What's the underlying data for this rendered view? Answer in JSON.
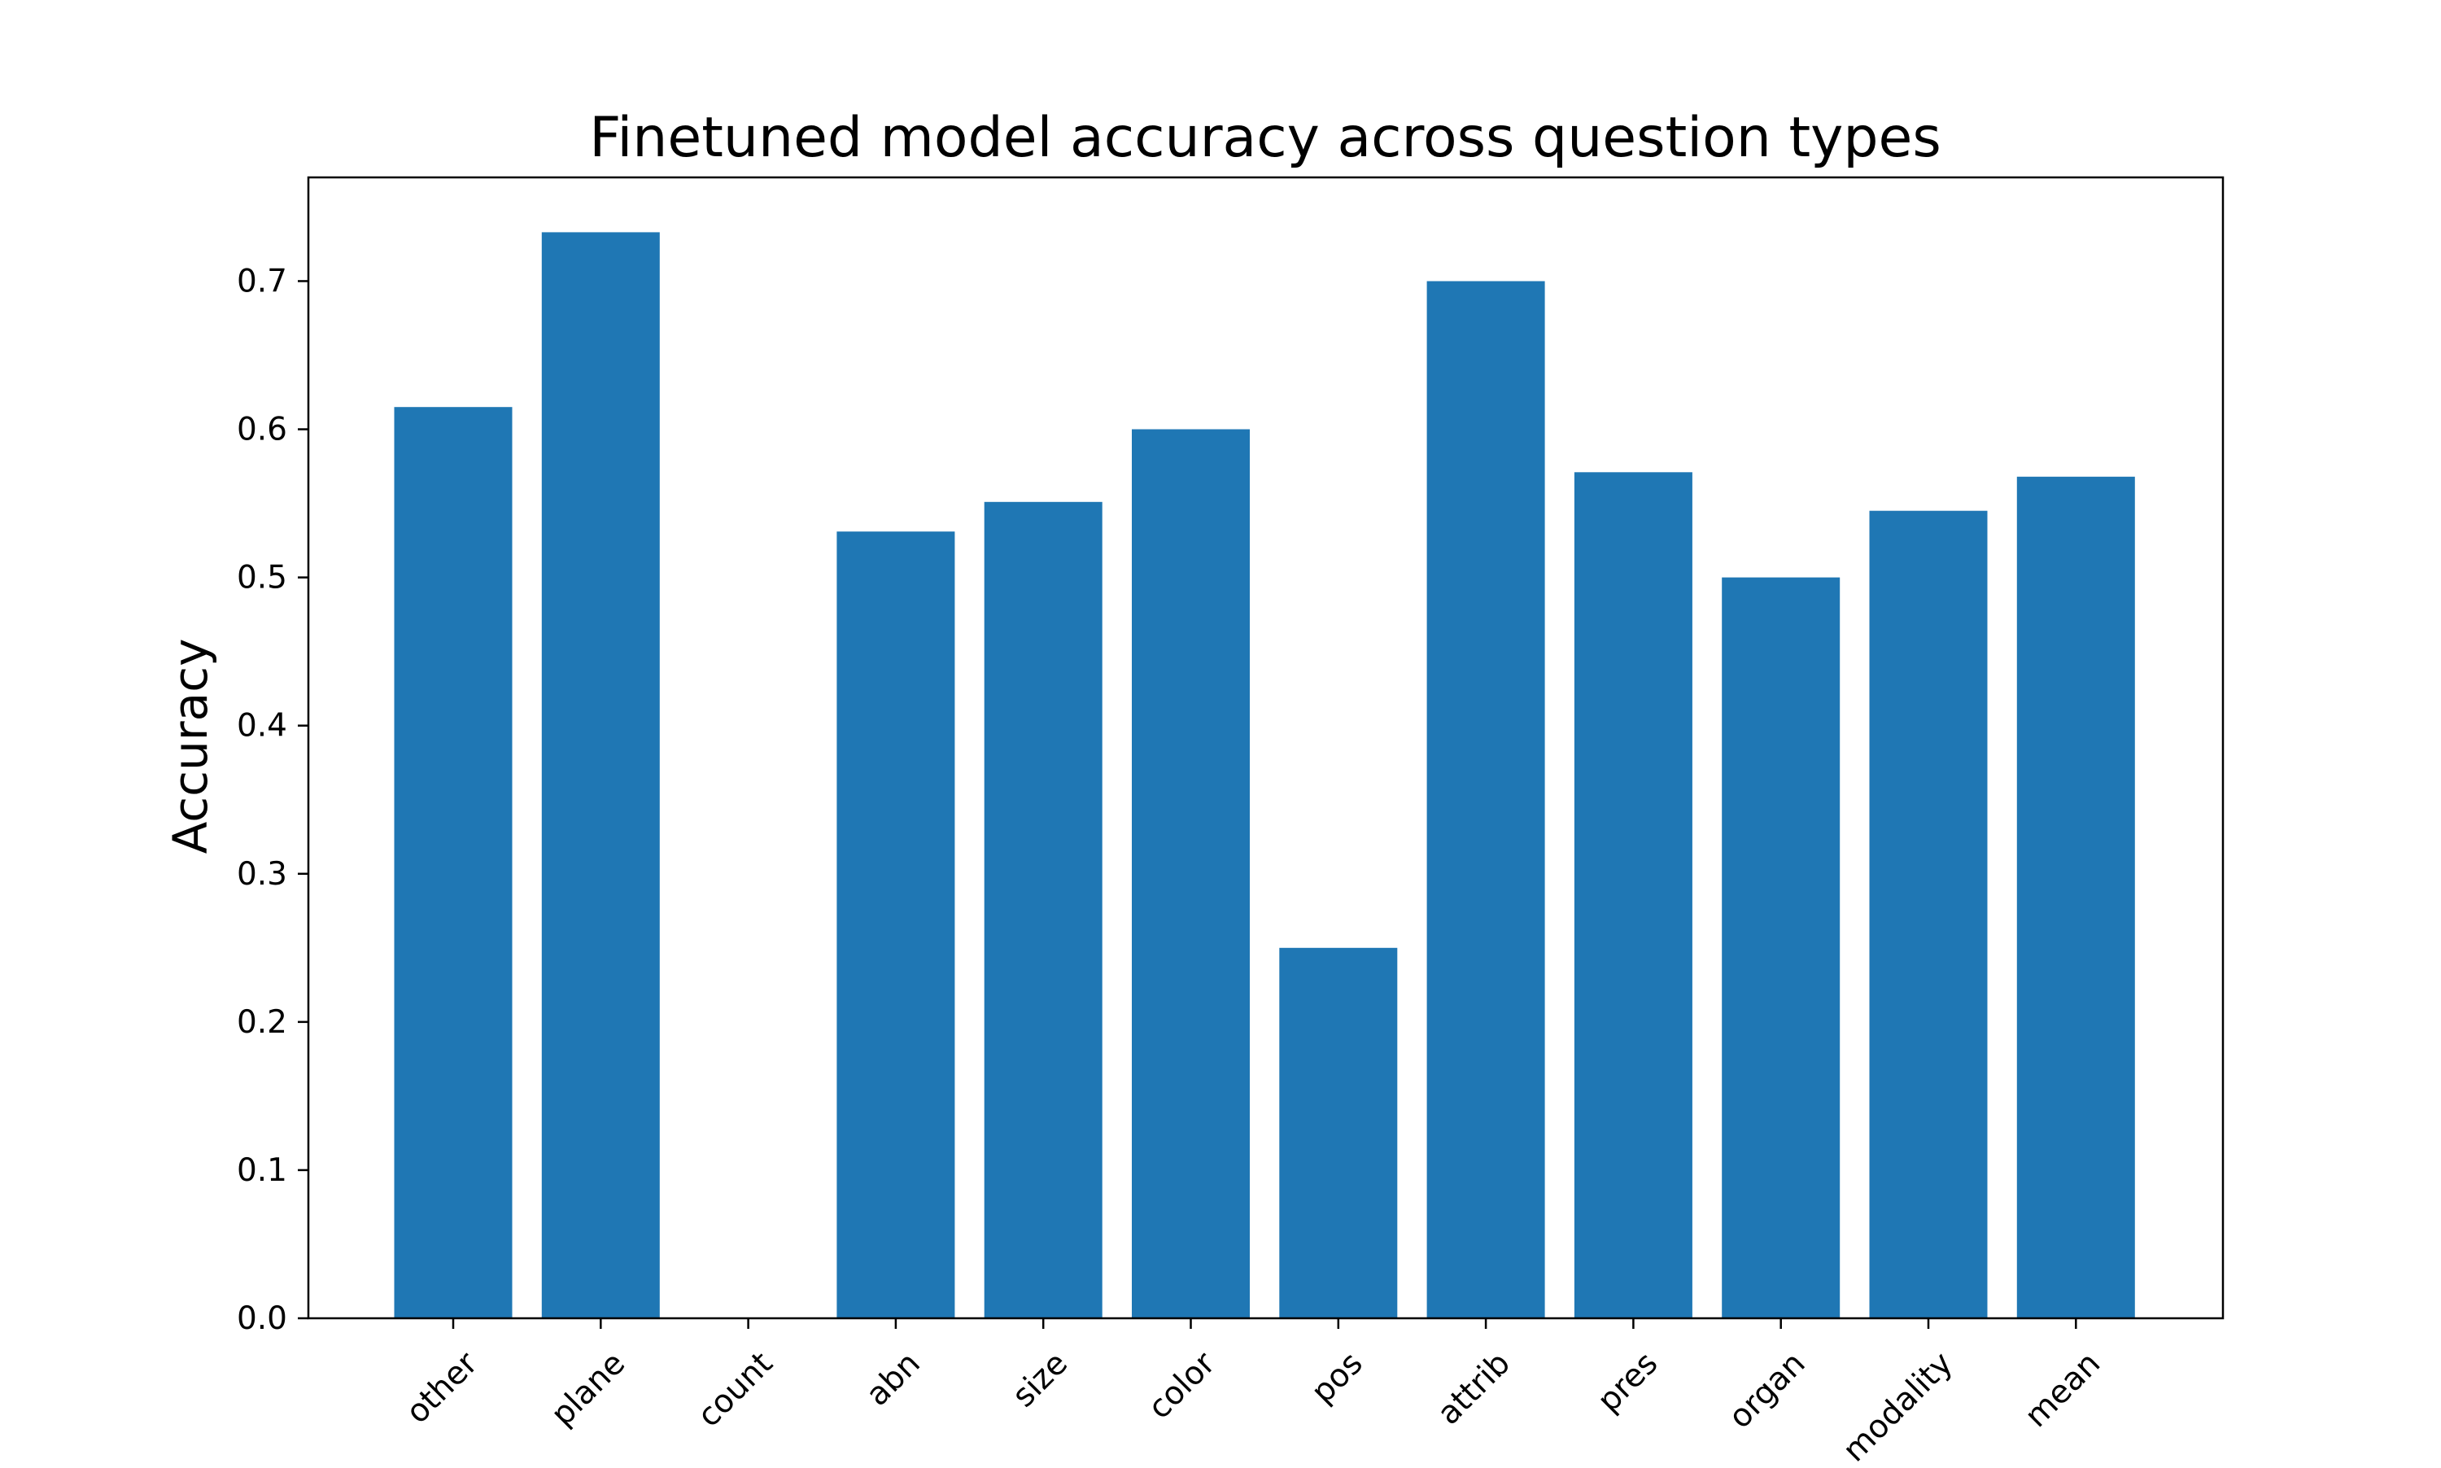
{
  "chart_data": {
    "type": "bar",
    "title": "Finetuned model accuracy across question types",
    "xlabel": "",
    "ylabel": "Accuracy",
    "categories": [
      "other",
      "plane",
      "count",
      "abn",
      "size",
      "color",
      "pos",
      "attrib",
      "pres",
      "organ",
      "modality",
      "mean"
    ],
    "values": [
      0.615,
      0.733,
      0.0,
      0.531,
      0.551,
      0.6,
      0.25,
      0.7,
      0.571,
      0.5,
      0.545,
      0.568
    ],
    "ylim": [
      0,
      0.77
    ],
    "yticks": [
      "0.0",
      "0.1",
      "0.2",
      "0.3",
      "0.4",
      "0.5",
      "0.6",
      "0.7"
    ],
    "grid": false,
    "legend": "none",
    "bar_color": "#1f77b4",
    "axes_color": "#000000"
  }
}
